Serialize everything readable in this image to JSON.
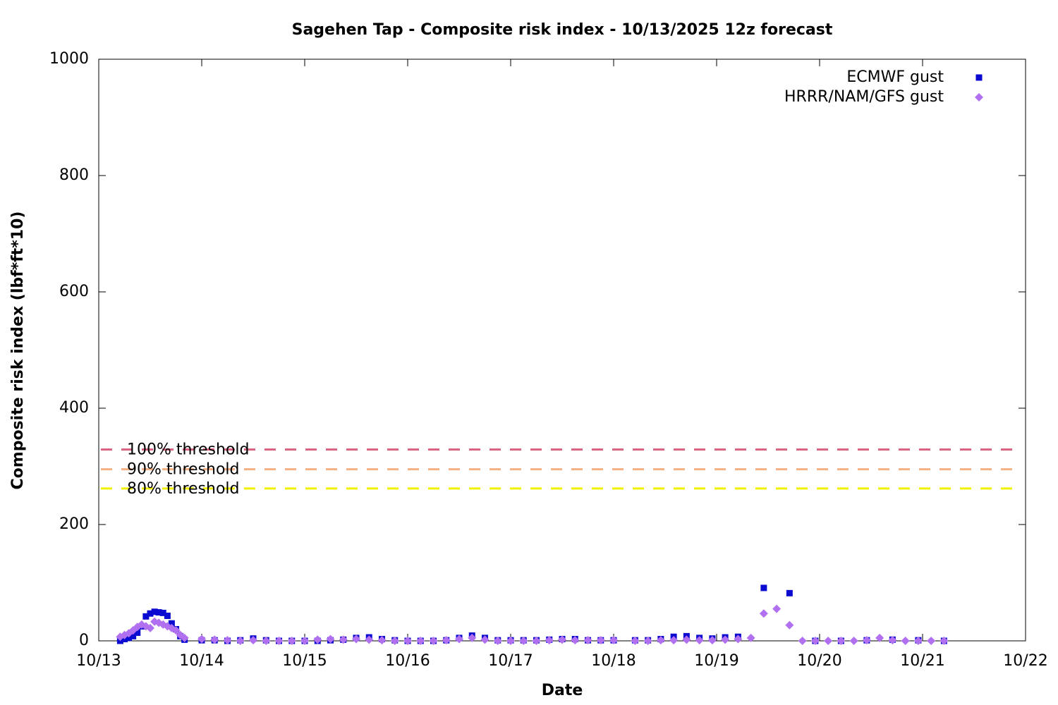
{
  "chart_data": {
    "type": "scatter",
    "title": "Sagehen Tap - Composite risk index - 10/13/2025 12z forecast",
    "xlabel": "Date",
    "ylabel": "Composite risk index (lbf*ft*10)",
    "xlim": [
      13,
      22
    ],
    "xticks": [
      {
        "value": 13,
        "label": "10/13"
      },
      {
        "value": 14,
        "label": "10/14"
      },
      {
        "value": 15,
        "label": "10/15"
      },
      {
        "value": 16,
        "label": "10/16"
      },
      {
        "value": 17,
        "label": "10/17"
      },
      {
        "value": 18,
        "label": "10/18"
      },
      {
        "value": 19,
        "label": "10/19"
      },
      {
        "value": 20,
        "label": "10/20"
      },
      {
        "value": 21,
        "label": "10/21"
      },
      {
        "value": 22,
        "label": "10/22"
      }
    ],
    "ylim": [
      0,
      1000
    ],
    "yticks": [
      0,
      200,
      400,
      600,
      800,
      1000
    ],
    "legend": "top right",
    "thresholds": [
      {
        "label": "100% threshold",
        "value": 329,
        "color": "#d9607e"
      },
      {
        "label": "90% threshold",
        "value": 295,
        "color": "#f5b183"
      },
      {
        "label": "80% threshold",
        "value": 262,
        "color": "#f0f000"
      }
    ],
    "series": [
      {
        "name": "ECMWF gust",
        "color": "#0a0ad0",
        "marker": "square",
        "x": [
          13.208,
          13.25,
          13.292,
          13.333,
          13.375,
          13.417,
          13.458,
          13.5,
          13.542,
          13.583,
          13.625,
          13.667,
          13.708,
          13.75,
          13.792,
          13.833,
          14.0,
          14.125,
          14.25,
          14.375,
          14.5,
          14.625,
          14.75,
          14.875,
          15.0,
          15.125,
          15.25,
          15.375,
          15.5,
          15.625,
          15.75,
          15.875,
          16.0,
          16.125,
          16.25,
          16.375,
          16.5,
          16.625,
          16.75,
          16.875,
          17.0,
          17.125,
          17.25,
          17.375,
          17.5,
          17.625,
          17.75,
          17.875,
          18.0,
          18.208,
          18.333,
          18.458,
          18.583,
          18.708,
          18.833,
          18.958,
          19.083,
          19.208,
          19.458,
          19.708,
          19.958,
          20.208,
          20.458,
          20.708,
          20.958,
          21.208
        ],
        "values": [
          0,
          3,
          5,
          8,
          14,
          25,
          42,
          47,
          50,
          49,
          48,
          43,
          30,
          20,
          8,
          2,
          1,
          1,
          0,
          1,
          4,
          1,
          0,
          0,
          0,
          0,
          1,
          2,
          5,
          6,
          3,
          1,
          0,
          0,
          0,
          1,
          5,
          9,
          5,
          1,
          1,
          1,
          1,
          2,
          3,
          3,
          1,
          1,
          1,
          1,
          1,
          3,
          7,
          8,
          5,
          4,
          6,
          7,
          91,
          82,
          0,
          0,
          1,
          2,
          1,
          0
        ]
      },
      {
        "name": "HRRR/NAM/GFS gust",
        "color": "#b070f0",
        "marker": "diamond",
        "x": [
          13.208,
          13.25,
          13.292,
          13.333,
          13.375,
          13.417,
          13.458,
          13.5,
          13.542,
          13.583,
          13.625,
          13.667,
          13.708,
          13.75,
          13.792,
          13.833,
          14.0,
          14.125,
          14.25,
          14.375,
          14.5,
          14.625,
          14.75,
          14.875,
          15.0,
          15.125,
          15.25,
          15.375,
          15.5,
          15.625,
          15.75,
          15.875,
          16.0,
          16.125,
          16.25,
          16.375,
          16.5,
          16.625,
          16.75,
          16.875,
          17.0,
          17.125,
          17.25,
          17.375,
          17.5,
          17.625,
          17.75,
          17.875,
          18.0,
          18.208,
          18.333,
          18.458,
          18.583,
          18.708,
          18.833,
          18.958,
          19.083,
          19.208,
          19.333,
          19.458,
          19.583,
          19.708,
          19.833,
          19.958,
          20.083,
          20.208,
          20.333,
          20.458,
          20.583,
          20.708,
          20.833,
          20.958,
          21.083,
          21.208
        ],
        "values": [
          7,
          10,
          13,
          18,
          24,
          28,
          25,
          22,
          33,
          31,
          28,
          25,
          22,
          18,
          10,
          5,
          3,
          2,
          1,
          0,
          1,
          0,
          0,
          0,
          0,
          2,
          3,
          2,
          3,
          2,
          1,
          0,
          0,
          0,
          0,
          1,
          3,
          5,
          2,
          0,
          0,
          0,
          0,
          1,
          2,
          1,
          1,
          1,
          1,
          0,
          0,
          1,
          1,
          2,
          1,
          1,
          2,
          3,
          5,
          47,
          55,
          27,
          0,
          0,
          0,
          0,
          0,
          1,
          5,
          1,
          0,
          0,
          0,
          0
        ]
      }
    ]
  }
}
